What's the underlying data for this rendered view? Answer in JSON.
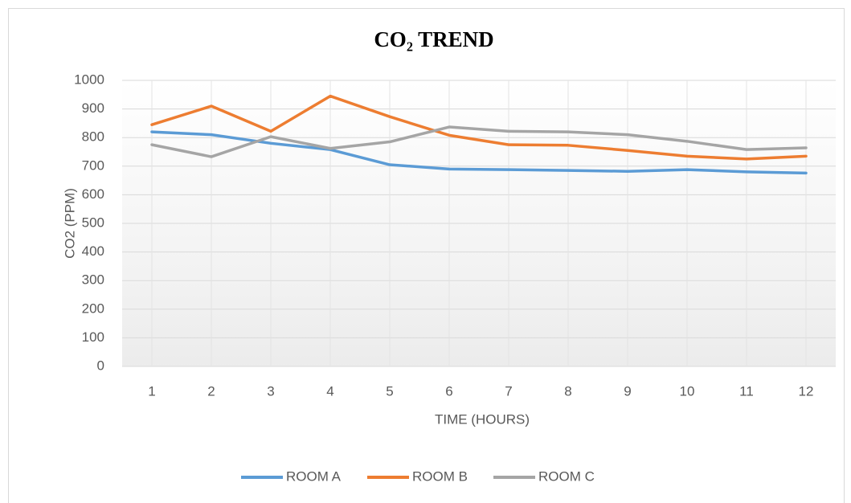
{
  "chart_data": {
    "type": "line",
    "title": "CO₂ TREND",
    "x_label": "TIME (HOURS)",
    "y_label": "CO2 (PPM)",
    "categories": [
      "1",
      "2",
      "3",
      "4",
      "5",
      "6",
      "7",
      "8",
      "9",
      "10",
      "11",
      "12"
    ],
    "series": [
      {
        "name": "ROOM A",
        "color": "#5b9bd5",
        "values": [
          820,
          810,
          780,
          758,
          705,
          690,
          688,
          685,
          682,
          688,
          680,
          676
        ]
      },
      {
        "name": "ROOM B",
        "color": "#ed7d31",
        "values": [
          845,
          910,
          822,
          945,
          873,
          808,
          775,
          773,
          755,
          735,
          725,
          735
        ]
      },
      {
        "name": "ROOM C",
        "color": "#a5a5a5",
        "values": [
          775,
          733,
          803,
          762,
          785,
          837,
          822,
          820,
          810,
          787,
          758,
          764
        ]
      }
    ],
    "ylim": [
      0,
      1000
    ],
    "yticks": [
      0,
      100,
      200,
      300,
      400,
      500,
      600,
      700,
      800,
      900,
      1000
    ],
    "grid": true,
    "legend": "bottom"
  }
}
